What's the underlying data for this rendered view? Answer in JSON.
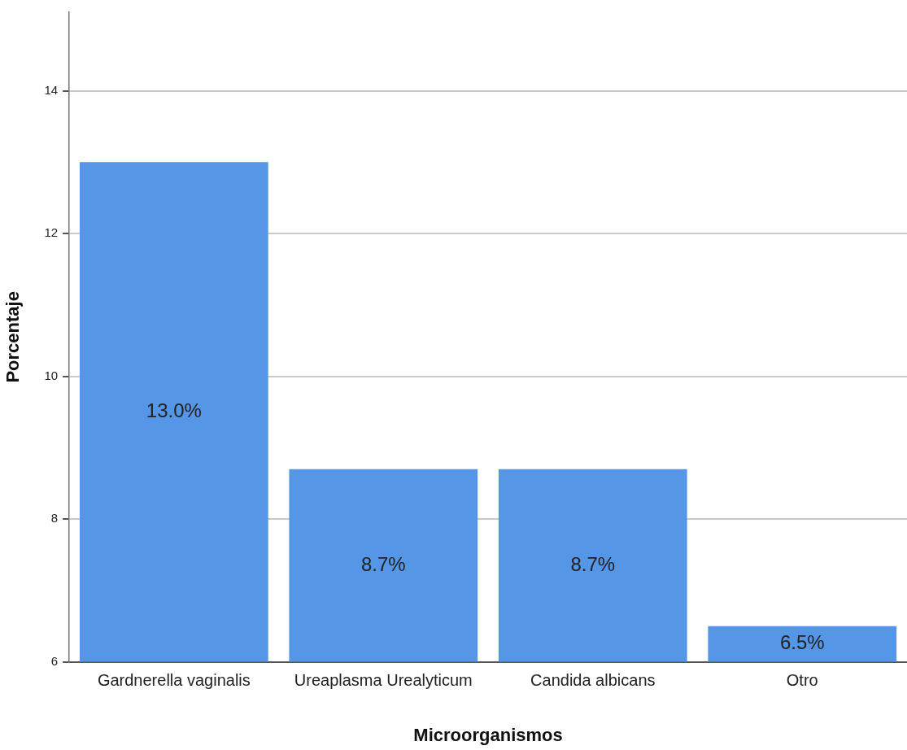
{
  "chart_data": {
    "type": "bar",
    "xlabel": "Microorganismos",
    "ylabel": "Porcentaje",
    "categories": [
      "Gardnerella vaginalis",
      "Ureaplasma Urealyticum",
      "Candida albicans",
      "Otro"
    ],
    "values": [
      13.0,
      8.7,
      8.7,
      6.5
    ],
    "color": "#5596e6",
    "value_labels": [
      "13.0%",
      "8.7%",
      "8.7%",
      "6.5%"
    ],
    "ylim": [
      6,
      15.1
    ],
    "yticks": [
      6,
      8,
      10,
      12,
      14
    ],
    "grid": "y",
    "legend": false
  }
}
